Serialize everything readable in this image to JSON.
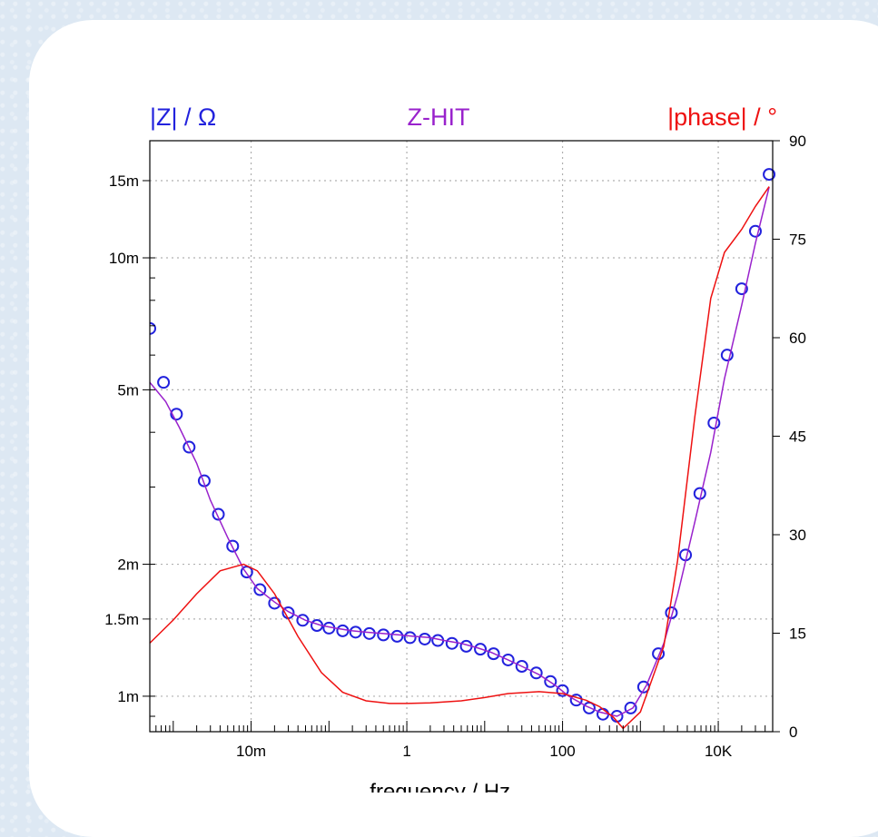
{
  "colors": {
    "impedance": "#2222dd",
    "zhit": "#9922cc",
    "phase": "#ee1111",
    "grid": "#b0b0b0"
  },
  "chart_data": {
    "type": "scatter",
    "title": "Z-HIT",
    "ylabel_left": "|Z| / Ω",
    "ylabel_right": "|phase| / °",
    "xlabel": "frequency / Hz →",
    "xscale": "log",
    "yscale_left": "log",
    "xlim": [
      0.0005,
      50000
    ],
    "ylim_left": [
      0.00083,
      0.0185
    ],
    "ylim_right": [
      0,
      90
    ],
    "grid": true,
    "x_ticks": [
      {
        "value": 0.01,
        "label": "10m"
      },
      {
        "value": 1,
        "label": "1"
      },
      {
        "value": 100,
        "label": "100"
      },
      {
        "value": 10000,
        "label": "10K"
      }
    ],
    "y_ticks_left": [
      {
        "value": 0.015,
        "label": "15m"
      },
      {
        "value": 0.01,
        "label": "10m"
      },
      {
        "value": 0.005,
        "label": "5m"
      },
      {
        "value": 0.002,
        "label": "2m"
      },
      {
        "value": 0.0015,
        "label": "1.5m"
      },
      {
        "value": 0.001,
        "label": "1m"
      }
    ],
    "y_ticks_right": [
      {
        "value": 0,
        "label": "0"
      },
      {
        "value": 15,
        "label": "15"
      },
      {
        "value": 30,
        "label": "30"
      },
      {
        "value": 45,
        "label": "45"
      },
      {
        "value": 60,
        "label": "60"
      },
      {
        "value": 75,
        "label": "75"
      },
      {
        "value": 90,
        "label": "90"
      }
    ],
    "series": [
      {
        "name": "|Z|",
        "kind": "markers",
        "axis": "left",
        "x": [
          0.0005,
          0.00075,
          0.0011,
          0.0016,
          0.0025,
          0.0038,
          0.0058,
          0.0088,
          0.013,
          0.02,
          0.03,
          0.046,
          0.07,
          0.1,
          0.15,
          0.22,
          0.33,
          0.5,
          0.75,
          1.1,
          1.7,
          2.5,
          3.8,
          5.8,
          8.8,
          13,
          20,
          30,
          46,
          70,
          100,
          150,
          220,
          330,
          500,
          750,
          1100,
          1700,
          2500,
          3800,
          5800,
          8800,
          13000,
          20000,
          30000,
          45000
        ],
        "y": [
          0.0069,
          0.0052,
          0.0044,
          0.0037,
          0.0031,
          0.0026,
          0.0022,
          0.00192,
          0.00175,
          0.00163,
          0.00155,
          0.00149,
          0.00145,
          0.00143,
          0.00141,
          0.0014,
          0.00139,
          0.00138,
          0.00137,
          0.00136,
          0.00135,
          0.00134,
          0.00132,
          0.0013,
          0.00128,
          0.00125,
          0.00121,
          0.00117,
          0.00113,
          0.00108,
          0.00103,
          0.00098,
          0.00094,
          0.00091,
          0.0009,
          0.00094,
          0.00105,
          0.00125,
          0.00155,
          0.0021,
          0.0029,
          0.0042,
          0.006,
          0.0085,
          0.0115,
          0.0155
        ]
      },
      {
        "name": "Z-HIT",
        "kind": "line",
        "axis": "left",
        "x": [
          0.0005,
          0.0008,
          0.0012,
          0.002,
          0.003,
          0.005,
          0.008,
          0.012,
          0.02,
          0.03,
          0.05,
          0.08,
          0.12,
          0.2,
          0.3,
          0.5,
          0.8,
          1.2,
          2,
          3,
          5,
          8,
          12,
          20,
          30,
          50,
          80,
          120,
          200,
          300,
          500,
          800,
          1200,
          2000,
          3000,
          5000,
          8000,
          12000,
          20000,
          30000,
          45000
        ],
        "y": [
          0.0052,
          0.0047,
          0.0041,
          0.0034,
          0.0028,
          0.0023,
          0.00195,
          0.00176,
          0.00164,
          0.00156,
          0.00149,
          0.00145,
          0.00143,
          0.00141,
          0.0014,
          0.00139,
          0.00138,
          0.00137,
          0.00136,
          0.00134,
          0.00132,
          0.00129,
          0.00126,
          0.00121,
          0.00117,
          0.00112,
          0.00106,
          0.001,
          0.00095,
          0.00092,
          0.0009,
          0.00094,
          0.00106,
          0.00132,
          0.0017,
          0.0025,
          0.0036,
          0.0053,
          0.0078,
          0.0108,
          0.0145
        ]
      },
      {
        "name": "|phase|",
        "kind": "line",
        "axis": "right",
        "x": [
          0.0005,
          0.001,
          0.002,
          0.004,
          0.008,
          0.012,
          0.02,
          0.04,
          0.08,
          0.15,
          0.3,
          0.6,
          1,
          2,
          5,
          10,
          20,
          50,
          100,
          200,
          300,
          450,
          600,
          1000,
          2000,
          3000,
          5000,
          8000,
          12000,
          20000,
          30000,
          45000
        ],
        "y": [
          13.5,
          17,
          21,
          24.5,
          25.5,
          24.5,
          21,
          14.5,
          9,
          6,
          4.7,
          4.3,
          4.3,
          4.4,
          4.7,
          5.2,
          5.8,
          6.1,
          5.8,
          4.8,
          3.8,
          2.2,
          0.5,
          3,
          13,
          26,
          48,
          66,
          73,
          76.5,
          80,
          83
        ]
      }
    ]
  }
}
